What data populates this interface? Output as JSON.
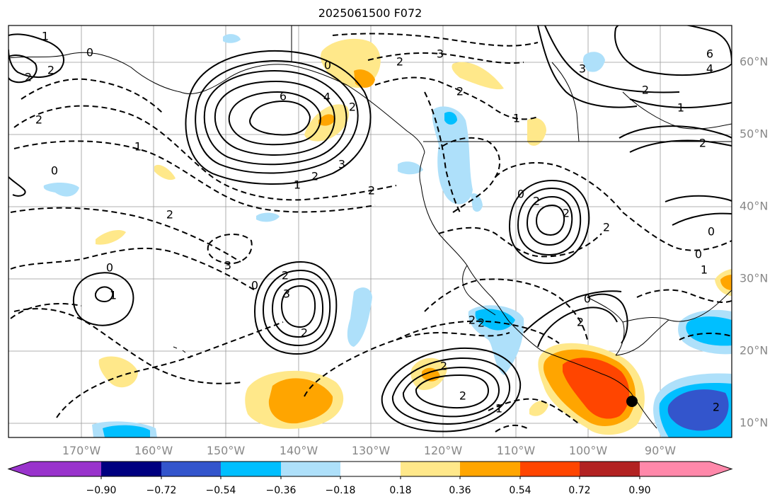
{
  "title": "2025061500 F072",
  "lon_labels": [
    "170°W",
    "160°W",
    "150°W",
    "140°W",
    "130°W",
    "120°W",
    "110°W",
    "100°W",
    "90°W"
  ],
  "lat_labels": [
    "60°N",
    "50°N",
    "40°N",
    "30°N",
    "20°N",
    "10°N"
  ],
  "colorbar": {
    "tick_labels": [
      "−0.90",
      "−0.72",
      "−0.54",
      "−0.36",
      "−0.18",
      "0.18",
      "0.36",
      "0.54",
      "0.72",
      "0.90"
    ],
    "colors": [
      "#9933cc",
      "#000080",
      "#3355cc",
      "#00bfff",
      "#aee0fa",
      "#ffffff",
      "#ffe88a",
      "#ffa500",
      "#ff4500",
      "#b22222",
      "#ff88aa"
    ]
  },
  "contour_labels": [
    "1",
    "2",
    "0",
    "2",
    "2",
    "1",
    "0",
    "6",
    "4",
    "2",
    "3",
    "2",
    "2",
    "1",
    "0",
    "2",
    "3",
    "0",
    "1",
    "0",
    "3",
    "2",
    "2",
    "2",
    "3",
    "2",
    "0",
    "2",
    "2",
    "2",
    "2",
    "1",
    "0",
    "2",
    "2",
    "2",
    "3",
    "1",
    "2",
    "6",
    "4",
    "2",
    "1",
    "2",
    "1",
    "0",
    "0",
    "2"
  ],
  "colors": {
    "yellow": "#ffe88a",
    "orange": "#ffa500",
    "red_orange": "#ff4500",
    "light_blue": "#aee0fa",
    "blue": "#00bfff",
    "dark_blue": "#3355cc",
    "marker": "#000000"
  }
}
